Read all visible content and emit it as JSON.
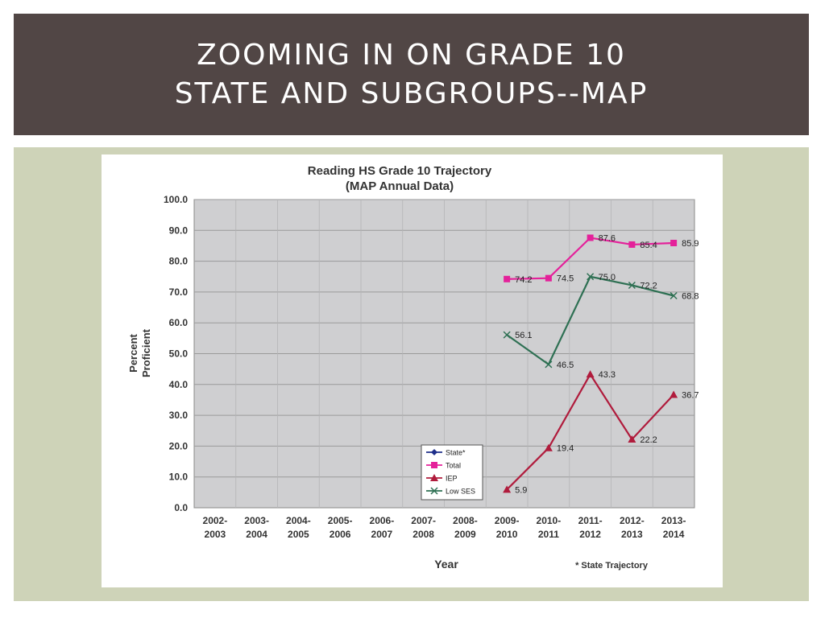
{
  "slide": {
    "title_line1": "ZOOMING IN ON GRADE 10",
    "title_line2": "STATE AND SUBGROUPS--MAP"
  },
  "colors": {
    "title_bg": "#514645",
    "content_bg": "#ced3b8",
    "plot_bg": "#cfcfd1",
    "total": "#e4219a",
    "iep": "#b01b3c",
    "low_ses": "#2e7053",
    "state": "#1f2f8a"
  },
  "chart_data": {
    "type": "line",
    "title": "Reading HS Grade 10 Trajectory",
    "subtitle": "(MAP Annual Data)",
    "xlabel": "Year",
    "ylabel_line1": "Percent",
    "ylabel_line2": "Proficient",
    "ylim": [
      0,
      100
    ],
    "yticks": [
      "0.0",
      "10.0",
      "20.0",
      "30.0",
      "40.0",
      "50.0",
      "60.0",
      "70.0",
      "80.0",
      "90.0",
      "100.0"
    ],
    "grid": true,
    "legend_position": "bottom-center",
    "footnote": "* State Trajectory",
    "categories": [
      [
        "2002-",
        "2003"
      ],
      [
        "2003-",
        "2004"
      ],
      [
        "2004-",
        "2005"
      ],
      [
        "2005-",
        "2006"
      ],
      [
        "2006-",
        "2007"
      ],
      [
        "2007-",
        "2008"
      ],
      [
        "2008-",
        "2009"
      ],
      [
        "2009-",
        "2010"
      ],
      [
        "2010-",
        "2011"
      ],
      [
        "2011-",
        "2012"
      ],
      [
        "2012-",
        "2013"
      ],
      [
        "2013-",
        "2014"
      ]
    ],
    "series": [
      {
        "name": "State*",
        "color": "#1f2f8a",
        "marker": "diamond",
        "values": [
          null,
          null,
          null,
          null,
          null,
          null,
          null,
          null,
          null,
          null,
          null,
          null
        ],
        "labels": []
      },
      {
        "name": "Total",
        "color": "#e4219a",
        "marker": "square",
        "values": [
          null,
          null,
          null,
          null,
          null,
          null,
          null,
          74.2,
          74.5,
          87.6,
          85.4,
          85.9
        ],
        "labels": [
          "",
          "",
          "",
          "",
          "",
          "",
          "",
          "74.2",
          "74.5",
          "87.6",
          "85.4",
          "85.9"
        ]
      },
      {
        "name": "IEP",
        "color": "#b01b3c",
        "marker": "triangle",
        "values": [
          null,
          null,
          null,
          null,
          null,
          null,
          null,
          5.9,
          19.4,
          43.3,
          22.2,
          36.7
        ],
        "labels": [
          "",
          "",
          "",
          "",
          "",
          "",
          "",
          "5.9",
          "19.4",
          "43.3",
          "22.2",
          "36.7"
        ]
      },
      {
        "name": "Low SES",
        "color": "#2e7053",
        "marker": "x",
        "values": [
          null,
          null,
          null,
          null,
          null,
          null,
          null,
          56.1,
          46.5,
          75.0,
          72.2,
          68.8
        ],
        "labels": [
          "",
          "",
          "",
          "",
          "",
          "",
          "",
          "56.1",
          "46.5",
          "75.0",
          "72.2",
          "68.8"
        ]
      }
    ]
  }
}
